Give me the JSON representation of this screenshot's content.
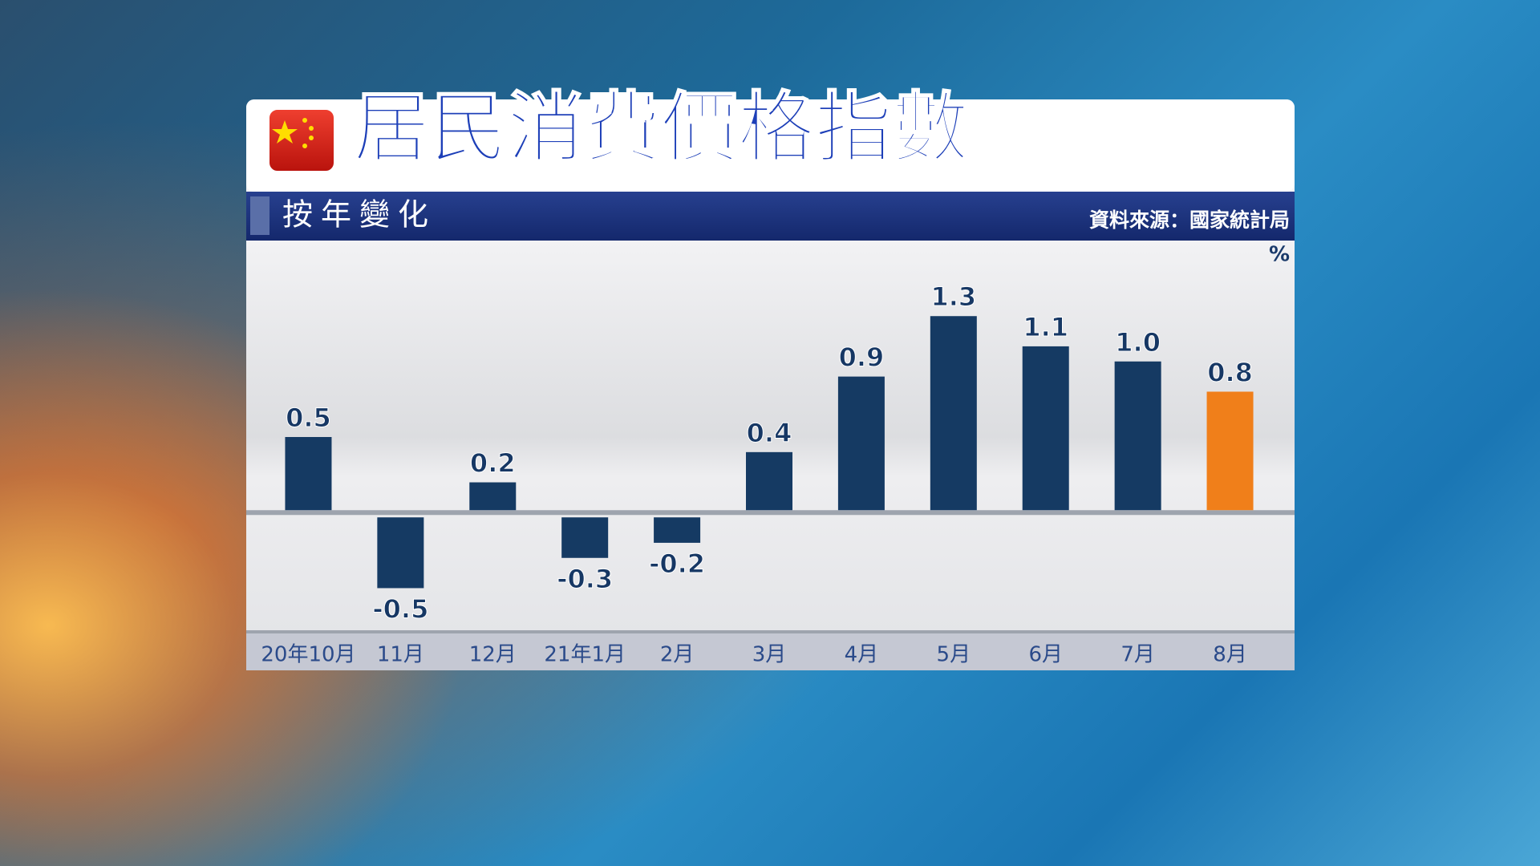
{
  "chart_data": {
    "type": "bar",
    "title": "居民消費價格指數",
    "subtitle": "按年變化",
    "source": "資料來源：國家統計局",
    "unit": "%",
    "categories": [
      "20年10月",
      "11月",
      "12月",
      "21年1月",
      "2月",
      "3月",
      "4月",
      "5月",
      "6月",
      "7月",
      "8月"
    ],
    "values": [
      0.5,
      -0.5,
      0.2,
      -0.3,
      -0.2,
      0.4,
      0.9,
      1.3,
      1.1,
      1.0,
      0.8
    ],
    "value_labels": [
      "0.5",
      "-0.5",
      "0.2",
      "-0.3",
      "-0.2",
      "0.4",
      "0.9",
      "1.3",
      "1.1",
      "1.0",
      "0.8"
    ],
    "colors": [
      "#153a63",
      "#153a63",
      "#153a63",
      "#153a63",
      "#153a63",
      "#153a63",
      "#153a63",
      "#153a63",
      "#153a63",
      "#153a63",
      "#f07f1a"
    ],
    "ylim": [
      -0.8,
      1.8
    ]
  }
}
